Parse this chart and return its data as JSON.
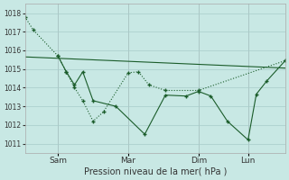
{
  "background_color": "#c8e8e4",
  "grid_color": "#a8ccca",
  "line_color": "#1a5c2a",
  "xlabel": "Pression niveau de la mer( hPa )",
  "ylim": [
    1010.5,
    1018.5
  ],
  "yticks": [
    1011,
    1012,
    1013,
    1014,
    1015,
    1016,
    1017,
    1018
  ],
  "xtick_labels": [
    "Sam",
    "Mar",
    "Dim",
    "Lun"
  ],
  "xtick_positions": [
    16,
    50,
    84,
    108
  ],
  "xlim": [
    0,
    126
  ],
  "dotted_x": [
    0,
    4,
    16,
    20,
    24,
    28,
    33,
    38,
    50,
    55,
    60,
    68,
    84,
    126
  ],
  "dotted_y": [
    1017.8,
    1017.1,
    1015.7,
    1014.85,
    1014.0,
    1013.3,
    1012.2,
    1012.7,
    1014.8,
    1014.85,
    1014.15,
    1013.85,
    1013.85,
    1015.45
  ],
  "solid_x": [
    16,
    20,
    24,
    28,
    33,
    44,
    58,
    68,
    78,
    84,
    90,
    98,
    108,
    112,
    117,
    126
  ],
  "solid_y": [
    1015.7,
    1014.85,
    1014.15,
    1014.85,
    1013.3,
    1013.0,
    1011.5,
    1013.6,
    1013.55,
    1013.8,
    1013.55,
    1012.2,
    1011.2,
    1013.65,
    1014.35,
    1015.45
  ],
  "trend_x": [
    0,
    126
  ],
  "trend_y": [
    1015.65,
    1015.05
  ]
}
